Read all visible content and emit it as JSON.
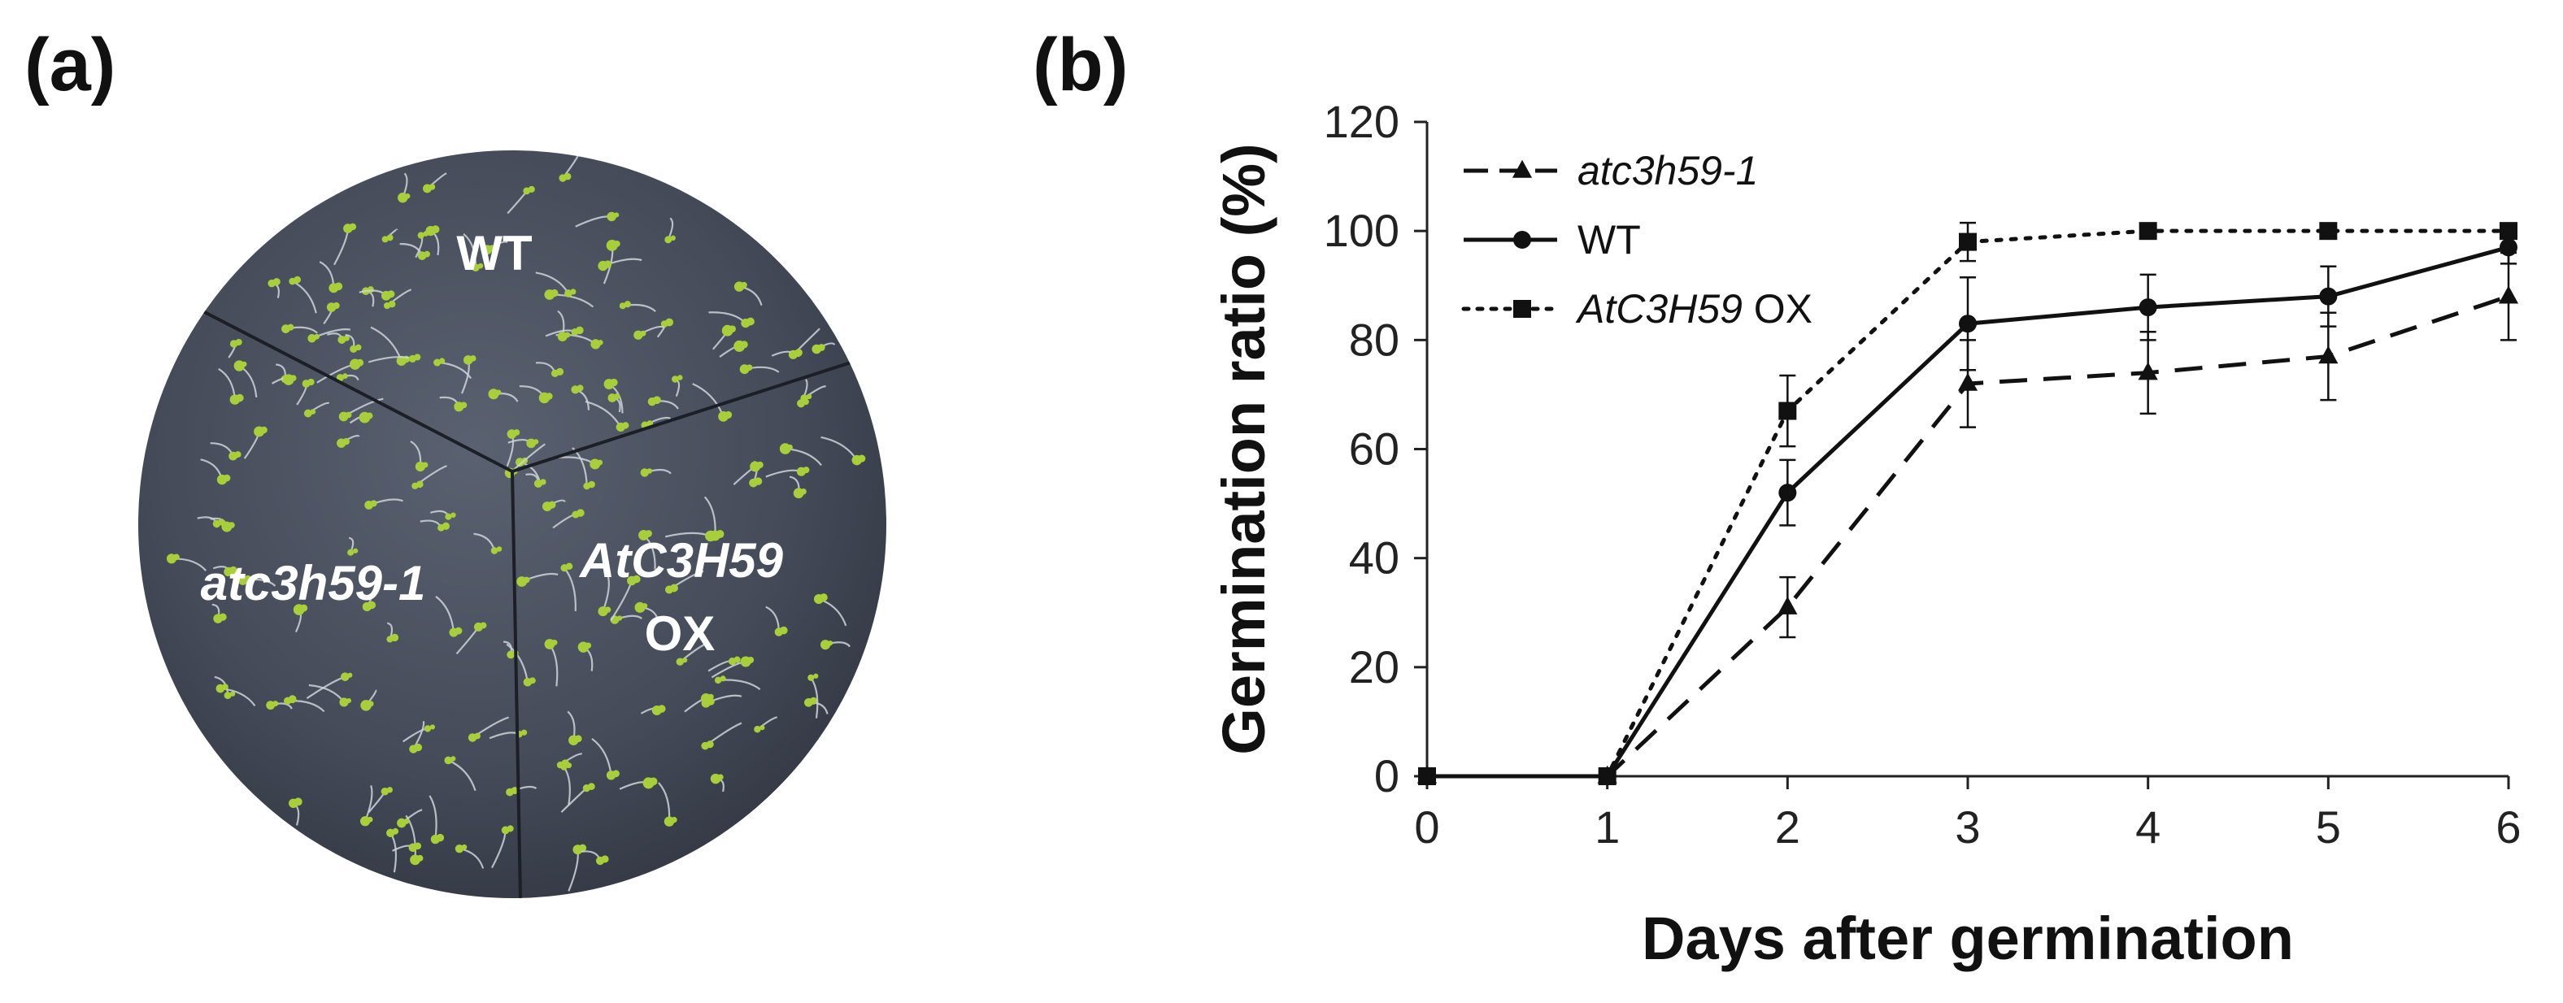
{
  "panels": {
    "a_label": "(a)",
    "b_label": "(b)"
  },
  "dish": {
    "sector_top": "WT",
    "sector_left": "atc3h59-1",
    "sector_right_line1": "AtC3H59",
    "sector_right_line2": "OX",
    "colors": {
      "plate": "#3f4452",
      "seedling": "#a8cf3a",
      "label": "#ffffff"
    }
  },
  "chart_data": {
    "type": "line",
    "xlabel": "Days after germination",
    "ylabel": "Germination ratio (%)",
    "x": [
      0,
      1,
      2,
      3,
      4,
      5,
      6
    ],
    "xlim": [
      0,
      6
    ],
    "ylim": [
      0,
      120
    ],
    "yticks": [
      0,
      20,
      40,
      60,
      80,
      100,
      120
    ],
    "xticks": [
      0,
      1,
      2,
      3,
      4,
      5,
      6
    ],
    "grid": false,
    "legend_position": "top-left",
    "series": [
      {
        "name_italic": "atc3h59-1",
        "name_suffix": "",
        "marker": "triangle",
        "line_style": "dashed",
        "values": [
          0,
          0,
          31,
          72,
          74,
          77,
          88
        ],
        "errors": [
          0,
          0,
          5.5,
          8,
          7.5,
          8,
          8
        ]
      },
      {
        "name_italic": "",
        "name_suffix": "WT",
        "marker": "circle",
        "line_style": "solid",
        "values": [
          0,
          0,
          52,
          83,
          86,
          88,
          97
        ],
        "errors": [
          0,
          0,
          6,
          8.5,
          6,
          5.5,
          3
        ]
      },
      {
        "name_italic": "AtC3H59",
        "name_suffix": " OX",
        "marker": "square",
        "line_style": "dotted",
        "values": [
          0,
          0,
          67,
          98,
          100,
          100,
          100
        ],
        "errors": [
          0,
          0,
          6.5,
          3.5,
          1,
          1,
          1
        ]
      }
    ],
    "colors": {
      "series": "#111111",
      "axis": "#222222"
    }
  }
}
